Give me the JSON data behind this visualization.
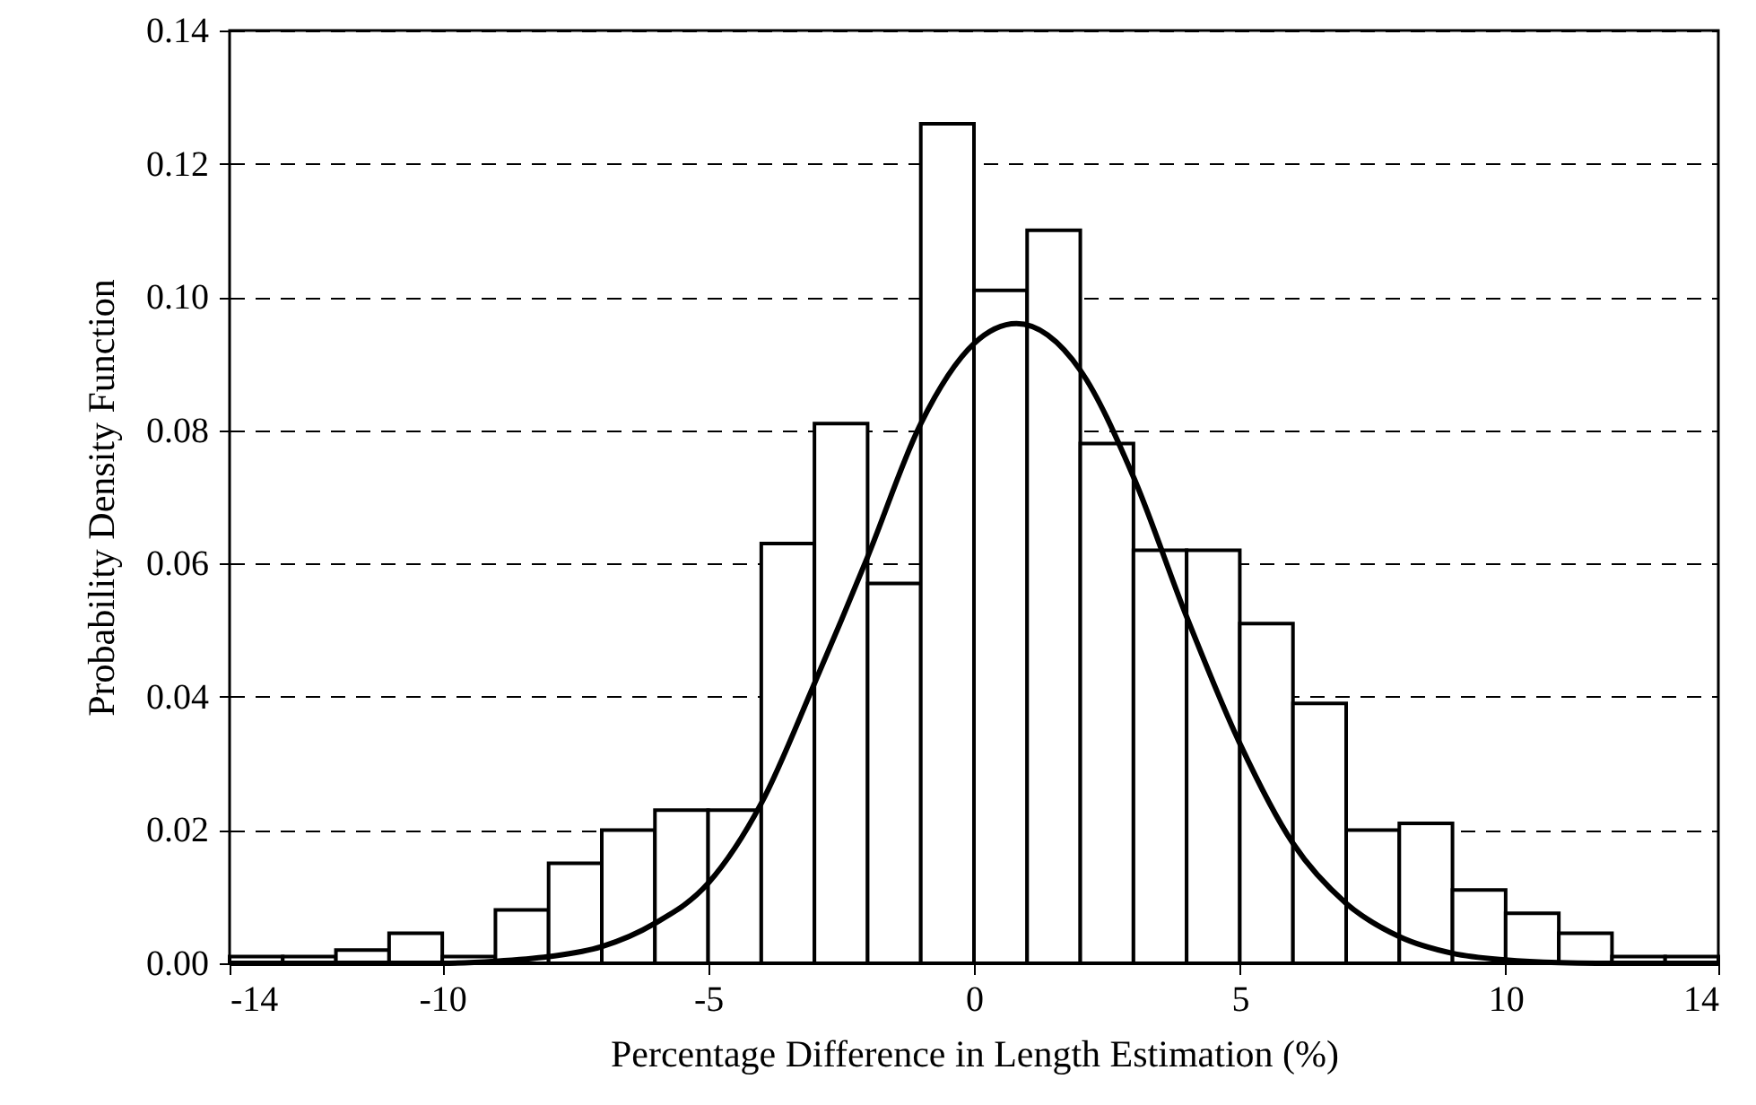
{
  "chart_data": {
    "type": "histogram",
    "xlabel": "Percentage Difference in Length Estimation (%)",
    "ylabel": "Probability Density Function",
    "bins": [
      -14,
      -13,
      -12,
      -11,
      -10,
      -9,
      -8,
      -7,
      -6,
      -5,
      -4,
      -3,
      -2,
      -1,
      0,
      1,
      2,
      3,
      4,
      5,
      6,
      7,
      8,
      9,
      10,
      11,
      12,
      13,
      14
    ],
    "values": [
      0.001,
      0.001,
      0.002,
      0.0045,
      0.001,
      0.008,
      0.015,
      0.02,
      0.023,
      0.023,
      0.063,
      0.081,
      0.057,
      0.126,
      0.101,
      0.11,
      0.078,
      0.062,
      0.062,
      0.051,
      0.039,
      0.02,
      0.021,
      0.011,
      0.0075,
      0.0045,
      0.001,
      0.001
    ],
    "color": "#ffffff",
    "series": [
      {
        "type": "line",
        "color": "#000000",
        "x": [
          -14,
          -12,
          -10,
          -9,
          -8,
          -7,
          -6,
          -5,
          -4,
          -3,
          -2,
          -1,
          0,
          0.8,
          2,
          3,
          4,
          5,
          6,
          7,
          8,
          9,
          10,
          11,
          12,
          14
        ],
        "values": [
          0,
          0,
          0,
          0.0003,
          0.001,
          0.0025,
          0.006,
          0.012,
          0.024,
          0.042,
          0.061,
          0.081,
          0.093,
          0.096,
          0.089,
          0.073,
          0.052,
          0.033,
          0.018,
          0.009,
          0.004,
          0.0015,
          0.0005,
          0.0001,
          0,
          0
        ]
      }
    ],
    "xlim": [
      -14,
      14
    ],
    "xticks": [
      -14,
      -10,
      -5,
      0,
      5,
      10,
      14
    ],
    "ylim": [
      0,
      0.14
    ],
    "yticks": [
      {
        "value": 0,
        "label": "0.00"
      },
      {
        "value": 0.02,
        "label": "0.02"
      },
      {
        "value": 0.04,
        "label": "0.04"
      },
      {
        "value": 0.06,
        "label": "0.06"
      },
      {
        "value": 0.08,
        "label": "0.08"
      },
      {
        "value": 0.1,
        "label": "0.10"
      },
      {
        "value": 0.12,
        "label": "0.12"
      },
      {
        "value": 0.14,
        "label": "0.14"
      }
    ],
    "grid": "y",
    "line_style": "solid",
    "marker": "none"
  }
}
